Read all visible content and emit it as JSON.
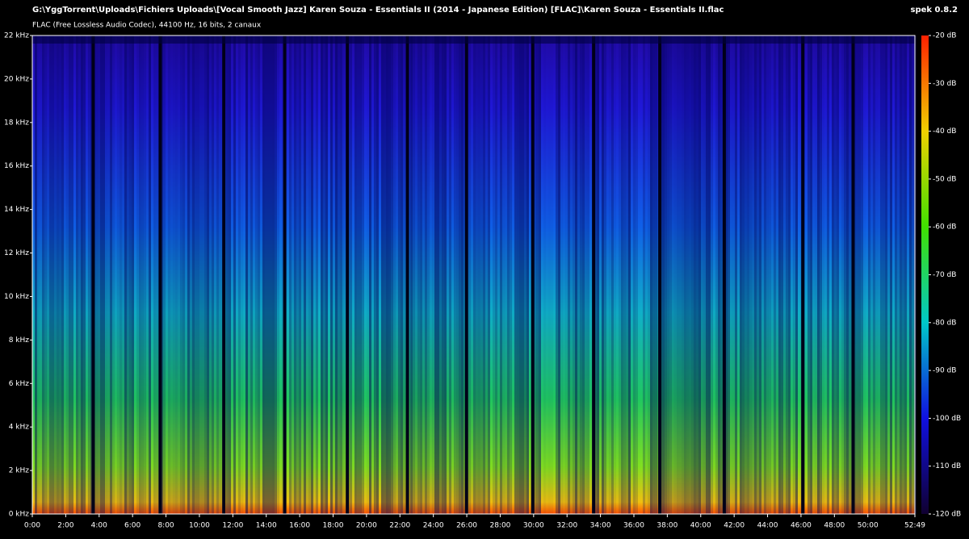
{
  "chart_data": {
    "type": "spectrogram",
    "title": "G:\\YggTorrent\\Uploads\\Fichiers Uploads\\[Vocal Smooth Jazz] Karen Souza - Essentials II (2014 - Japanese Edition) [FLAC]\\Karen Souza - Essentials II.flac",
    "subtitle": "FLAC (Free Lossless Audio Codec), 44100 Hz, 16 bits, 2 canaux",
    "app": "spek 0.8.2",
    "xlim": [
      0,
      3169
    ],
    "xticks": [
      {
        "value": 0,
        "label": "0:00"
      },
      {
        "value": 120,
        "label": "2:00"
      },
      {
        "value": 240,
        "label": "4:00"
      },
      {
        "value": 360,
        "label": "6:00"
      },
      {
        "value": 480,
        "label": "8:00"
      },
      {
        "value": 600,
        "label": "10:00"
      },
      {
        "value": 720,
        "label": "12:00"
      },
      {
        "value": 840,
        "label": "14:00"
      },
      {
        "value": 960,
        "label": "16:00"
      },
      {
        "value": 1080,
        "label": "18:00"
      },
      {
        "value": 1200,
        "label": "20:00"
      },
      {
        "value": 1320,
        "label": "22:00"
      },
      {
        "value": 1440,
        "label": "24:00"
      },
      {
        "value": 1560,
        "label": "26:00"
      },
      {
        "value": 1680,
        "label": "28:00"
      },
      {
        "value": 1800,
        "label": "30:00"
      },
      {
        "value": 1920,
        "label": "32:00"
      },
      {
        "value": 2040,
        "label": "34:00"
      },
      {
        "value": 2160,
        "label": "36:00"
      },
      {
        "value": 2280,
        "label": "38:00"
      },
      {
        "value": 2400,
        "label": "40:00"
      },
      {
        "value": 2520,
        "label": "42:00"
      },
      {
        "value": 2640,
        "label": "44:00"
      },
      {
        "value": 2760,
        "label": "46:00"
      },
      {
        "value": 2880,
        "label": "48:00"
      },
      {
        "value": 3000,
        "label": "50:00"
      },
      {
        "value": 3169,
        "label": "52:49"
      }
    ],
    "ylim": [
      0,
      22
    ],
    "yticks": [
      {
        "value": 0,
        "label": "0 kHz"
      },
      {
        "value": 2,
        "label": "2 kHz"
      },
      {
        "value": 4,
        "label": "4 kHz"
      },
      {
        "value": 6,
        "label": "6 kHz"
      },
      {
        "value": 8,
        "label": "8 kHz"
      },
      {
        "value": 10,
        "label": "10 kHz"
      },
      {
        "value": 12,
        "label": "12 kHz"
      },
      {
        "value": 14,
        "label": "14 kHz"
      },
      {
        "value": 16,
        "label": "16 kHz"
      },
      {
        "value": 18,
        "label": "18 kHz"
      },
      {
        "value": 20,
        "label": "20 kHz"
      },
      {
        "value": 22,
        "label": "22 kHz"
      }
    ],
    "colorbar_lim": [
      -120,
      -20
    ],
    "colorbar_ticks": [
      {
        "value": -20,
        "label": "-20 dB"
      },
      {
        "value": -30,
        "label": "-30 dB"
      },
      {
        "value": -40,
        "label": "-40 dB"
      },
      {
        "value": -50,
        "label": "-50 dB"
      },
      {
        "value": -60,
        "label": "-60 dB"
      },
      {
        "value": -70,
        "label": "-70 dB"
      },
      {
        "value": -80,
        "label": "-80 dB"
      },
      {
        "value": -90,
        "label": "-90 dB"
      },
      {
        "value": -100,
        "label": "-100 dB"
      },
      {
        "value": -110,
        "label": "-110 dB"
      },
      {
        "value": -120,
        "label": "-120 dB"
      }
    ]
  }
}
